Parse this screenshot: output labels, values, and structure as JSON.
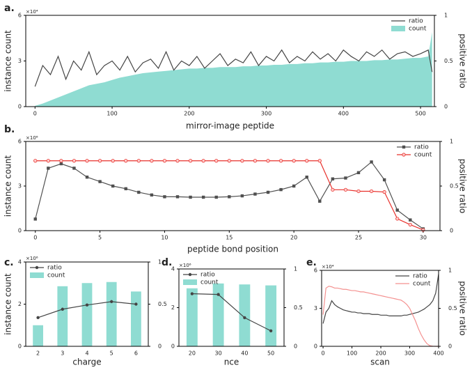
{
  "chart_data": [
    {
      "type": "combo",
      "panel_label": "a.",
      "x_label": "mirror-image peptide",
      "y_label": "instance count",
      "y2_label": "positive ratio",
      "y_multiplier": "×10⁴",
      "xlim": [
        -12,
        518
      ],
      "xticks": [
        0,
        100,
        200,
        300,
        400,
        500
      ],
      "ylim": [
        0,
        6
      ],
      "yticks": [
        0,
        3,
        6
      ],
      "y2lim": [
        0,
        1
      ],
      "y2ticks": [
        0,
        0.5,
        1
      ],
      "legend": "top-right",
      "x": [
        0,
        10,
        20,
        30,
        40,
        50,
        60,
        70,
        80,
        90,
        100,
        110,
        120,
        130,
        140,
        150,
        160,
        170,
        180,
        190,
        200,
        210,
        220,
        230,
        240,
        250,
        260,
        270,
        280,
        290,
        300,
        310,
        320,
        330,
        340,
        350,
        360,
        370,
        380,
        390,
        400,
        410,
        420,
        430,
        440,
        450,
        460,
        470,
        480,
        490,
        500,
        510,
        515
      ],
      "series": [
        {
          "name": "ratio",
          "kind": "line",
          "axis": "y2",
          "color": "#444444",
          "values": [
            0.22,
            0.45,
            0.35,
            0.55,
            0.3,
            0.5,
            0.4,
            0.6,
            0.35,
            0.45,
            0.5,
            0.4,
            0.55,
            0.38,
            0.48,
            0.52,
            0.42,
            0.6,
            0.4,
            0.5,
            0.45,
            0.55,
            0.42,
            0.5,
            0.58,
            0.45,
            0.52,
            0.48,
            0.6,
            0.45,
            0.55,
            0.5,
            0.62,
            0.48,
            0.55,
            0.5,
            0.6,
            0.52,
            0.58,
            0.5,
            0.62,
            0.55,
            0.5,
            0.6,
            0.55,
            0.62,
            0.52,
            0.58,
            0.6,
            0.55,
            0.58,
            0.62,
            0.38
          ]
        },
        {
          "name": "count",
          "kind": "area",
          "axis": "y",
          "color": "#8fdcd2",
          "values": [
            0.05,
            0.2,
            0.4,
            0.6,
            0.8,
            1.0,
            1.2,
            1.4,
            1.5,
            1.6,
            1.75,
            1.9,
            2.0,
            2.1,
            2.2,
            2.25,
            2.3,
            2.35,
            2.4,
            2.45,
            2.5,
            2.5,
            2.55,
            2.55,
            2.6,
            2.6,
            2.6,
            2.65,
            2.65,
            2.7,
            2.7,
            2.75,
            2.75,
            2.8,
            2.8,
            2.85,
            2.85,
            2.9,
            2.9,
            2.95,
            2.95,
            3.0,
            3.0,
            3.0,
            3.05,
            3.05,
            3.1,
            3.1,
            3.15,
            3.2,
            3.2,
            3.3,
            4.9
          ]
        }
      ]
    },
    {
      "type": "combo",
      "panel_label": "b.",
      "x_label": "peptide bond position",
      "y_label": "instance count",
      "y2_label": "positive ratio",
      "y_multiplier": "×10⁶",
      "xlim": [
        -0.74,
        31.3
      ],
      "xticks": [
        0,
        5,
        10,
        15,
        20,
        25,
        30
      ],
      "ylim": [
        0,
        6
      ],
      "yticks": [
        0,
        3,
        6
      ],
      "y2lim": [
        0,
        1
      ],
      "y2ticks": [
        0,
        0.5,
        1
      ],
      "legend": "top-right",
      "x": [
        0,
        1,
        2,
        3,
        4,
        5,
        6,
        7,
        8,
        9,
        10,
        11,
        12,
        13,
        14,
        15,
        16,
        17,
        18,
        19,
        20,
        21,
        22,
        23,
        24,
        25,
        26,
        27,
        28,
        29,
        30
      ],
      "series": [
        {
          "name": "ratio",
          "kind": "line",
          "marker": "square",
          "axis": "y2",
          "color": "#505050",
          "values": [
            0.13,
            0.7,
            0.75,
            0.7,
            0.6,
            0.55,
            0.5,
            0.47,
            0.43,
            0.4,
            0.38,
            0.38,
            0.375,
            0.375,
            0.375,
            0.38,
            0.39,
            0.41,
            0.43,
            0.46,
            0.5,
            0.6,
            0.33,
            0.58,
            0.59,
            0.65,
            0.77,
            0.57,
            0.23,
            0.12,
            0.02
          ]
        },
        {
          "name": "count",
          "kind": "line",
          "marker": "circle",
          "axis": "y",
          "color": "#e8302b",
          "values": [
            4.7,
            4.7,
            4.7,
            4.7,
            4.7,
            4.7,
            4.7,
            4.7,
            4.7,
            4.7,
            4.7,
            4.7,
            4.7,
            4.7,
            4.7,
            4.7,
            4.7,
            4.7,
            4.7,
            4.7,
            4.7,
            4.7,
            4.7,
            2.75,
            2.75,
            2.65,
            2.65,
            2.6,
            0.8,
            0.4,
            0.05
          ]
        }
      ]
    },
    {
      "type": "combo",
      "panel_label": "c.",
      "x_label": "charge",
      "y_label": "instance count",
      "y_multiplier": "×10⁶",
      "categories": [
        "2",
        "3",
        "4",
        "5",
        "6"
      ],
      "ylim": [
        0,
        4
      ],
      "yticks": [
        0,
        2,
        4
      ],
      "y2lim": [
        0,
        1
      ],
      "y2ticks": [
        0,
        0.5,
        1
      ],
      "legend": "top-left",
      "series": [
        {
          "name": "ratio",
          "kind": "line",
          "marker": "dot",
          "axis": "y2",
          "color": "#444444",
          "values": [
            0.34,
            0.44,
            0.49,
            0.53,
            0.5
          ]
        },
        {
          "name": "count",
          "kind": "bar",
          "axis": "y",
          "color": "#8fdcd2",
          "values": [
            1.0,
            2.85,
            3.0,
            3.05,
            2.6
          ]
        }
      ]
    },
    {
      "type": "combo",
      "panel_label": "d.",
      "x_label": "nce",
      "y_multiplier": "×10⁶",
      "categories": [
        "20",
        "30",
        "40",
        "50"
      ],
      "ylim": [
        0,
        4
      ],
      "yticks": [
        0,
        2,
        4
      ],
      "y2lim": [
        0,
        1
      ],
      "y2ticks": [
        0,
        0.5,
        1
      ],
      "legend": "top-left",
      "series": [
        {
          "name": "ratio",
          "kind": "line",
          "marker": "dot",
          "axis": "y2",
          "color": "#444444",
          "values": [
            0.68,
            0.67,
            0.37,
            0.2
          ]
        },
        {
          "name": "count",
          "kind": "bar",
          "axis": "y",
          "color": "#8fdcd2",
          "values": [
            3.0,
            3.25,
            3.2,
            3.15
          ]
        }
      ]
    },
    {
      "type": "combo",
      "panel_label": "e.",
      "x_label": "scan",
      "y2_label": "positive ratio",
      "y_multiplier": "×10⁴",
      "xlim": [
        -5,
        400
      ],
      "xticks": [
        0,
        100,
        200,
        300,
        400
      ],
      "ylim": [
        0,
        6
      ],
      "yticks": [
        0,
        3,
        6
      ],
      "y2lim": [
        0,
        1
      ],
      "y2ticks": [
        0,
        0.5,
        1
      ],
      "legend": "top-right",
      "x": [
        0,
        10,
        20,
        30,
        40,
        50,
        60,
        70,
        80,
        90,
        100,
        110,
        120,
        130,
        140,
        150,
        160,
        170,
        180,
        190,
        200,
        210,
        220,
        230,
        240,
        250,
        260,
        270,
        280,
        290,
        300,
        310,
        320,
        330,
        340,
        350,
        360,
        370,
        380,
        390,
        400
      ],
      "series": [
        {
          "name": "ratio",
          "kind": "line",
          "axis": "y2",
          "color": "#444444",
          "values": [
            0.3,
            0.45,
            0.5,
            0.6,
            0.55,
            0.52,
            0.5,
            0.48,
            0.47,
            0.46,
            0.45,
            0.45,
            0.44,
            0.44,
            0.43,
            0.43,
            0.43,
            0.42,
            0.42,
            0.42,
            0.41,
            0.41,
            0.41,
            0.4,
            0.4,
            0.4,
            0.4,
            0.4,
            0.41,
            0.41,
            0.42,
            0.43,
            0.44,
            0.45,
            0.47,
            0.49,
            0.52,
            0.55,
            0.6,
            0.7,
            0.95
          ]
        },
        {
          "name": "count",
          "kind": "line",
          "axis": "y",
          "color": "#f4908f",
          "values": [
            2.5,
            4.6,
            4.75,
            4.7,
            4.6,
            4.6,
            4.55,
            4.5,
            4.5,
            4.45,
            4.4,
            4.4,
            4.35,
            4.3,
            4.3,
            4.25,
            4.2,
            4.15,
            4.1,
            4.05,
            4.0,
            3.95,
            3.9,
            3.85,
            3.8,
            3.75,
            3.7,
            3.65,
            3.5,
            3.3,
            3.0,
            2.5,
            2.0,
            1.4,
            0.9,
            0.5,
            0.2,
            0.05,
            0.01,
            0,
            0
          ]
        }
      ]
    }
  ]
}
